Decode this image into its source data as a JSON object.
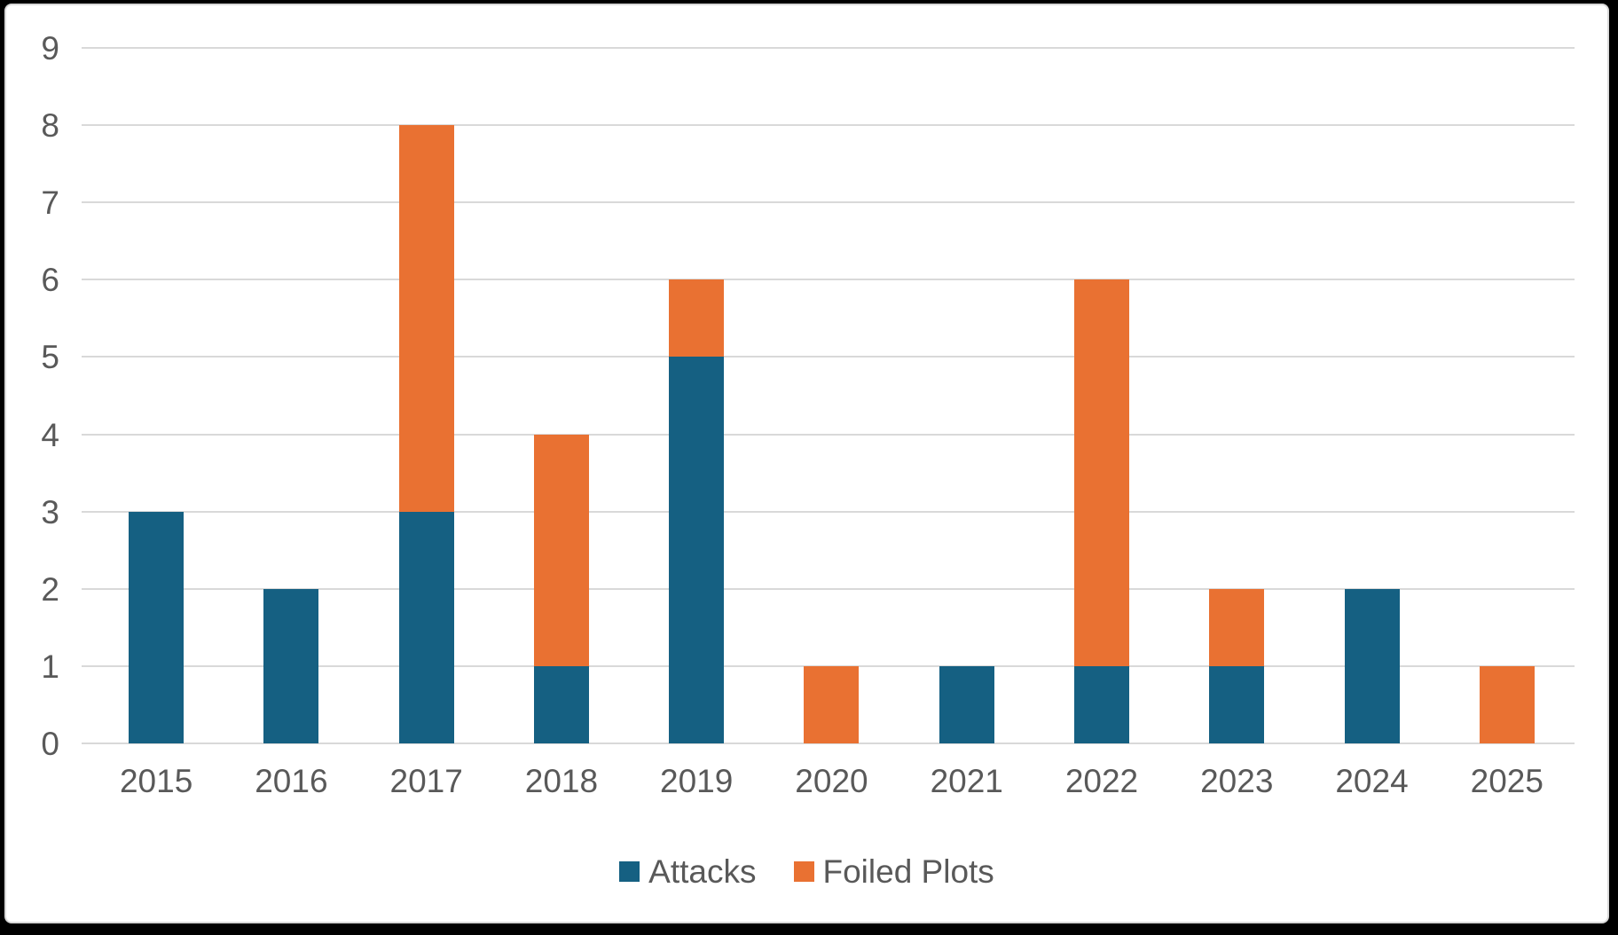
{
  "frame": {
    "background": "#000000",
    "panel_background": "#FFFFFF",
    "panel_border": "#D9D9D9"
  },
  "chart_data": {
    "type": "bar",
    "stacked": true,
    "title": "",
    "categories": [
      "2015",
      "2016",
      "2017",
      "2018",
      "2019",
      "2020",
      "2021",
      "2022",
      "2023",
      "2024",
      "2025"
    ],
    "series": [
      {
        "name": "Attacks",
        "color": "#156082",
        "values": [
          3,
          2,
          3,
          1,
          5,
          0,
          1,
          1,
          1,
          2,
          0
        ]
      },
      {
        "name": "Foiled Plots",
        "color": "#E97132",
        "values": [
          0,
          0,
          5,
          3,
          1,
          1,
          0,
          5,
          1,
          0,
          1
        ]
      }
    ],
    "totals": [
      3,
      2,
      8,
      4,
      6,
      1,
      1,
      6,
      2,
      2,
      1
    ],
    "ylim": [
      0,
      9
    ],
    "yticks": [
      0,
      1,
      2,
      3,
      4,
      5,
      6,
      7,
      8,
      9
    ],
    "grid": true,
    "gridline_color": "#D9D9D9",
    "tick_label_color": "#595959",
    "legend_position": "bottom",
    "legend_entries": [
      "Attacks",
      "Foiled Plots"
    ]
  }
}
